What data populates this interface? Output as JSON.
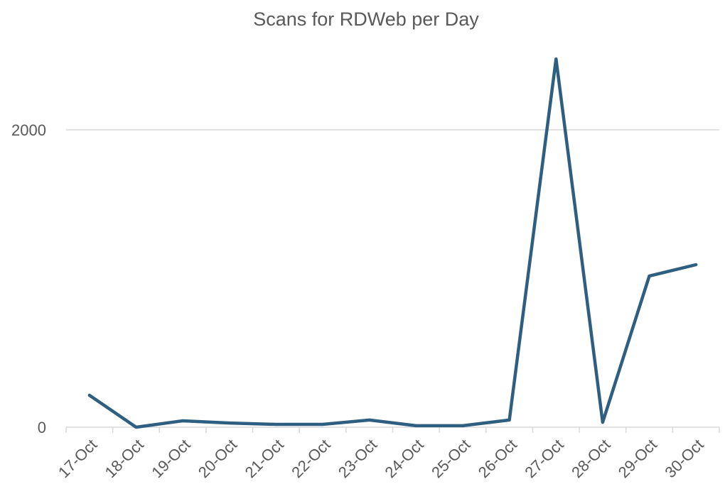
{
  "chart_data": {
    "type": "line",
    "title": "Scans for RDWeb per Day",
    "xlabel": "",
    "ylabel": "",
    "categories": [
      "17-Oct",
      "18-Oct",
      "19-Oct",
      "20-Oct",
      "21-Oct",
      "22-Oct",
      "23-Oct",
      "24-Oct",
      "25-Oct",
      "26-Oct",
      "27-Oct",
      "28-Oct",
      "29-Oct",
      "30-Oct"
    ],
    "series": [
      {
        "name": "Scans",
        "values": [
          215,
          0,
          43,
          28,
          19,
          19,
          48,
          10,
          10,
          48,
          2477,
          33,
          1017,
          1093
        ],
        "color": "#2E5F80"
      }
    ],
    "yticks": [
      "0",
      "2000"
    ],
    "ylim": [
      0,
      2600
    ],
    "grid": true,
    "legend": "none"
  }
}
